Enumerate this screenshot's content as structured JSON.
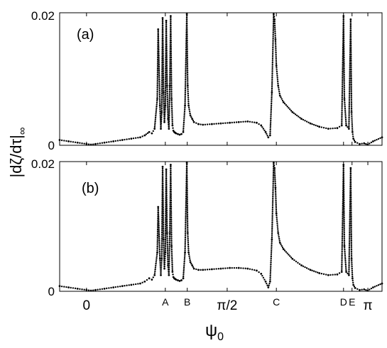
{
  "figure": {
    "ylabel": "|dζ/dτ|",
    "ylabel_sub": "∞",
    "xlabel": "ψ",
    "xlabel_sub": "0",
    "x_tick_labels": [
      {
        "value": 0,
        "text": "0"
      },
      {
        "value": 0.88,
        "text": "A"
      },
      {
        "value": 1.125,
        "text": "B"
      },
      {
        "value": 1.5708,
        "text": "π/2"
      },
      {
        "value": 2.12,
        "text": "C"
      },
      {
        "value": 2.87,
        "text": "D"
      },
      {
        "value": 2.965,
        "text": "E"
      },
      {
        "value": 3.1416,
        "text": "π"
      }
    ]
  },
  "chart_data": [
    {
      "type": "scatter",
      "panel_label": "(a)",
      "xlim": [
        -0.3,
        3.3
      ],
      "ylim": [
        0,
        0.02
      ],
      "y_tick_labels": [
        "0",
        "0.02"
      ],
      "grid": false,
      "series": [
        {
          "x": [
            -0.3,
            -0.2,
            -0.1,
            0.0,
            0.05,
            0.1,
            0.2,
            0.3,
            0.4,
            0.5,
            0.6,
            0.65,
            0.7,
            0.73,
            0.76,
            0.79,
            0.8,
            0.82,
            0.83,
            0.84,
            0.85,
            0.86,
            0.87,
            0.88,
            0.89,
            0.9,
            0.91,
            0.92,
            0.93,
            0.94,
            0.95,
            0.96,
            0.97,
            0.98,
            0.99,
            1.0,
            1.02,
            1.04,
            1.06,
            1.08,
            1.1,
            1.12,
            1.13,
            1.14,
            1.16,
            1.18,
            1.2,
            1.25,
            1.3,
            1.4,
            1.5,
            1.6,
            1.7,
            1.8,
            1.9,
            1.95,
            2.0,
            2.03,
            2.05,
            2.07,
            2.09,
            2.1,
            2.11,
            2.12,
            2.14,
            2.16,
            2.2,
            2.3,
            2.4,
            2.5,
            2.6,
            2.7,
            2.8,
            2.85,
            2.87,
            2.88,
            2.9,
            2.93,
            2.95,
            2.96,
            2.97,
            2.98,
            3.0,
            3.05,
            3.1,
            3.14,
            3.2,
            3.3
          ],
          "y": [
            0.0008,
            0.0006,
            0.0004,
            0.0002,
            0.0001,
            0.0002,
            0.0004,
            0.0006,
            0.0008,
            0.001,
            0.0012,
            0.0015,
            0.002,
            0.0018,
            0.0025,
            0.007,
            0.0175,
            0.006,
            0.0025,
            0.005,
            0.0192,
            0.008,
            0.0035,
            0.006,
            0.0188,
            0.009,
            0.004,
            0.0025,
            0.009,
            0.0195,
            0.007,
            0.003,
            0.0022,
            0.002,
            0.0019,
            0.0018,
            0.0017,
            0.0016,
            0.0017,
            0.002,
            0.006,
            0.0198,
            0.009,
            0.006,
            0.0045,
            0.004,
            0.0035,
            0.0032,
            0.0031,
            0.0032,
            0.0033,
            0.0034,
            0.0035,
            0.0036,
            0.0034,
            0.003,
            0.002,
            0.0012,
            0.0015,
            0.008,
            0.0198,
            0.019,
            0.016,
            0.012,
            0.009,
            0.0075,
            0.0065,
            0.005,
            0.004,
            0.0033,
            0.0028,
            0.0025,
            0.0026,
            0.003,
            0.0195,
            0.007,
            0.003,
            0.0025,
            0.019,
            0.005,
            0.002,
            0.001,
            0.0005,
            0.0002,
            0.0003,
            0.0001,
            0.0006,
            0.0012
          ]
        }
      ]
    },
    {
      "type": "scatter",
      "panel_label": "(b)",
      "xlim": [
        -0.3,
        3.3
      ],
      "ylim": [
        0,
        0.02
      ],
      "y_tick_labels": [
        "0",
        "0.02"
      ],
      "grid": false,
      "series": [
        {
          "x": [
            -0.3,
            -0.2,
            -0.1,
            0.0,
            0.05,
            0.1,
            0.2,
            0.3,
            0.4,
            0.5,
            0.6,
            0.65,
            0.7,
            0.73,
            0.76,
            0.79,
            0.8,
            0.82,
            0.83,
            0.84,
            0.85,
            0.86,
            0.87,
            0.88,
            0.89,
            0.9,
            0.91,
            0.92,
            0.93,
            0.94,
            0.95,
            0.96,
            0.97,
            0.98,
            0.99,
            1.0,
            1.02,
            1.04,
            1.06,
            1.08,
            1.1,
            1.12,
            1.13,
            1.14,
            1.16,
            1.18,
            1.2,
            1.25,
            1.3,
            1.4,
            1.5,
            1.6,
            1.7,
            1.8,
            1.9,
            1.95,
            2.0,
            2.03,
            2.05,
            2.07,
            2.09,
            2.1,
            2.11,
            2.12,
            2.14,
            2.16,
            2.2,
            2.3,
            2.4,
            2.5,
            2.6,
            2.7,
            2.8,
            2.85,
            2.87,
            2.88,
            2.9,
            2.93,
            2.95,
            2.96,
            2.97,
            2.98,
            3.0,
            3.05,
            3.1,
            3.14,
            3.2,
            3.3
          ],
          "y": [
            0.0008,
            0.0006,
            0.0004,
            0.0002,
            0.0001,
            0.0002,
            0.0004,
            0.0006,
            0.0008,
            0.001,
            0.0012,
            0.0015,
            0.002,
            0.0018,
            0.0025,
            0.006,
            0.013,
            0.005,
            0.0025,
            0.005,
            0.0192,
            0.008,
            0.0035,
            0.006,
            0.0188,
            0.009,
            0.004,
            0.0025,
            0.009,
            0.0195,
            0.007,
            0.003,
            0.0022,
            0.002,
            0.0019,
            0.0018,
            0.0017,
            0.0016,
            0.0017,
            0.002,
            0.006,
            0.0198,
            0.009,
            0.006,
            0.0045,
            0.004,
            0.0035,
            0.0033,
            0.0033,
            0.0034,
            0.0035,
            0.0036,
            0.0036,
            0.0035,
            0.0032,
            0.0027,
            0.0015,
            0.0006,
            0.0015,
            0.008,
            0.0198,
            0.019,
            0.016,
            0.012,
            0.009,
            0.0075,
            0.0065,
            0.005,
            0.004,
            0.0033,
            0.0028,
            0.0025,
            0.0026,
            0.003,
            0.0195,
            0.007,
            0.003,
            0.0025,
            0.019,
            0.005,
            0.002,
            0.001,
            0.0005,
            0.0002,
            0.0003,
            0.0001,
            0.0006,
            0.0012
          ]
        }
      ]
    }
  ]
}
